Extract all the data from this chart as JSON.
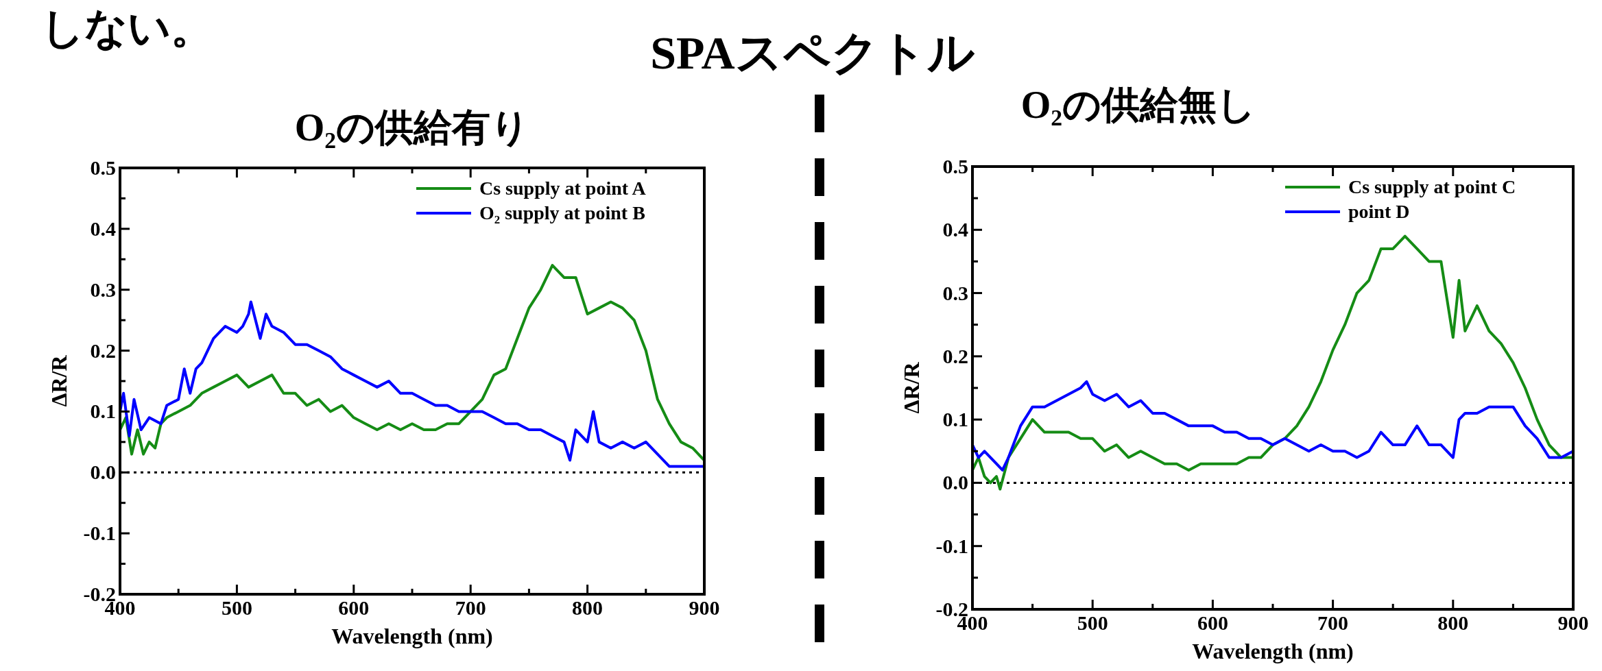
{
  "chart_data": [
    {
      "type": "other",
      "title": "SPAスペクトル",
      "annotations": [
        "しない。"
      ]
    },
    {
      "type": "line",
      "title": "O₂の供給有り",
      "xlabel": "Wavelength (nm)",
      "ylabel": "ΔR/R",
      "xlim": [
        400,
        900
      ],
      "ylim": [
        -0.2,
        0.5
      ],
      "xticks": [
        400,
        {
          "value": 450,
          "label": null
        },
        500,
        {
          "value": 550,
          "label": null
        },
        600,
        {
          "value": 650,
          "label": null
        },
        700,
        {
          "value": 750,
          "label": null
        },
        800,
        {
          "value": 850,
          "label": null
        },
        900
      ],
      "yticks": [
        -0.2,
        {
          "value": -0.15,
          "label": null
        },
        -0.1,
        {
          "value": -0.05,
          "label": null
        },
        {
          "value": 0,
          "label": "0.0"
        },
        {
          "value": 0.05,
          "label": null
        },
        0.1,
        {
          "value": 0.15,
          "label": null
        },
        0.2,
        {
          "value": 0.25,
          "label": null
        },
        0.3,
        {
          "value": 0.35,
          "label": null
        },
        0.4,
        {
          "value": 0.45,
          "label": null
        },
        0.5
      ],
      "legend": "top right",
      "grid": false,
      "ref_lines": [
        {
          "axis": "y",
          "value": 0,
          "line_style": "dotted",
          "color": "#000000"
        }
      ],
      "series": [
        {
          "name": "Cs supply at point A",
          "color": "#158c15",
          "x": [
            400,
            405,
            410,
            415,
            420,
            425,
            430,
            435,
            440,
            450,
            460,
            470,
            480,
            490,
            500,
            510,
            520,
            530,
            540,
            550,
            560,
            570,
            580,
            590,
            600,
            610,
            620,
            630,
            640,
            650,
            660,
            670,
            680,
            690,
            700,
            710,
            720,
            730,
            740,
            750,
            760,
            770,
            780,
            790,
            800,
            810,
            820,
            830,
            840,
            850,
            860,
            870,
            880,
            890,
            900
          ],
          "values": [
            0.07,
            0.09,
            0.03,
            0.07,
            0.03,
            0.05,
            0.04,
            0.08,
            0.09,
            0.1,
            0.11,
            0.13,
            0.14,
            0.15,
            0.16,
            0.14,
            0.15,
            0.16,
            0.13,
            0.13,
            0.11,
            0.12,
            0.1,
            0.11,
            0.09,
            0.08,
            0.07,
            0.08,
            0.07,
            0.08,
            0.07,
            0.07,
            0.08,
            0.08,
            0.1,
            0.12,
            0.16,
            0.17,
            0.22,
            0.27,
            0.3,
            0.34,
            0.32,
            0.32,
            0.26,
            0.27,
            0.28,
            0.27,
            0.25,
            0.2,
            0.12,
            0.08,
            0.05,
            0.04,
            0.02
          ]
        },
        {
          "name": "O₂ supply at point B",
          "color": "#0000ff",
          "x": [
            400,
            403,
            408,
            412,
            418,
            425,
            435,
            440,
            450,
            455,
            460,
            465,
            470,
            475,
            480,
            490,
            500,
            505,
            510,
            512,
            520,
            525,
            530,
            540,
            550,
            560,
            570,
            580,
            590,
            600,
            610,
            620,
            630,
            640,
            650,
            660,
            670,
            680,
            690,
            700,
            710,
            720,
            730,
            740,
            750,
            760,
            770,
            780,
            785,
            790,
            800,
            805,
            810,
            820,
            830,
            840,
            850,
            860,
            870,
            880,
            890,
            900
          ],
          "values": [
            0.1,
            0.13,
            0.06,
            0.12,
            0.07,
            0.09,
            0.08,
            0.11,
            0.12,
            0.17,
            0.13,
            0.17,
            0.18,
            0.2,
            0.22,
            0.24,
            0.23,
            0.24,
            0.26,
            0.28,
            0.22,
            0.26,
            0.24,
            0.23,
            0.21,
            0.21,
            0.2,
            0.19,
            0.17,
            0.16,
            0.15,
            0.14,
            0.15,
            0.13,
            0.13,
            0.12,
            0.11,
            0.11,
            0.1,
            0.1,
            0.1,
            0.09,
            0.08,
            0.08,
            0.07,
            0.07,
            0.06,
            0.05,
            0.02,
            0.07,
            0.05,
            0.1,
            0.05,
            0.04,
            0.05,
            0.04,
            0.05,
            0.03,
            0.01,
            0.01,
            0.01,
            0.01
          ]
        }
      ]
    },
    {
      "type": "line",
      "title": "O₂の供給無し",
      "xlabel": "Wavelength (nm)",
      "ylabel": "ΔR/R",
      "xlim": [
        400,
        900
      ],
      "ylim": [
        -0.2,
        0.5
      ],
      "xticks": [
        400,
        {
          "value": 450,
          "label": null
        },
        500,
        {
          "value": 550,
          "label": null
        },
        600,
        {
          "value": 650,
          "label": null
        },
        700,
        {
          "value": 750,
          "label": null
        },
        800,
        {
          "value": 850,
          "label": null
        },
        900
      ],
      "yticks": [
        -0.2,
        {
          "value": -0.15,
          "label": null
        },
        -0.1,
        {
          "value": -0.05,
          "label": null
        },
        {
          "value": 0,
          "label": "0.0"
        },
        {
          "value": 0.05,
          "label": null
        },
        0.1,
        {
          "value": 0.15,
          "label": null
        },
        0.2,
        {
          "value": 0.25,
          "label": null
        },
        0.3,
        {
          "value": 0.35,
          "label": null
        },
        0.4,
        {
          "value": 0.45,
          "label": null
        },
        0.5
      ],
      "legend": "top right",
      "grid": false,
      "ref_lines": [
        {
          "axis": "y",
          "value": 0,
          "line_style": "dotted",
          "color": "#000000"
        }
      ],
      "series": [
        {
          "name": "Cs supply at point C",
          "color": "#158c15",
          "x": [
            400,
            405,
            410,
            415,
            420,
            423,
            430,
            440,
            450,
            460,
            470,
            480,
            490,
            500,
            510,
            520,
            530,
            540,
            550,
            560,
            570,
            580,
            590,
            600,
            610,
            620,
            630,
            640,
            650,
            660,
            670,
            680,
            690,
            700,
            710,
            720,
            730,
            740,
            750,
            760,
            770,
            780,
            790,
            800,
            805,
            810,
            820,
            830,
            840,
            850,
            860,
            870,
            880,
            890,
            900
          ],
          "values": [
            0.02,
            0.04,
            0.01,
            0.0,
            0.01,
            -0.01,
            0.04,
            0.07,
            0.1,
            0.08,
            0.08,
            0.08,
            0.07,
            0.07,
            0.05,
            0.06,
            0.04,
            0.05,
            0.04,
            0.03,
            0.03,
            0.02,
            0.03,
            0.03,
            0.03,
            0.03,
            0.04,
            0.04,
            0.06,
            0.07,
            0.09,
            0.12,
            0.16,
            0.21,
            0.25,
            0.3,
            0.32,
            0.37,
            0.37,
            0.39,
            0.37,
            0.35,
            0.35,
            0.23,
            0.32,
            0.24,
            0.28,
            0.24,
            0.22,
            0.19,
            0.15,
            0.1,
            0.06,
            0.04,
            0.04
          ]
        },
        {
          "name": "point D",
          "color": "#0000ff",
          "x": [
            400,
            405,
            410,
            420,
            425,
            430,
            440,
            450,
            460,
            470,
            480,
            490,
            495,
            500,
            510,
            520,
            530,
            540,
            550,
            560,
            570,
            580,
            590,
            600,
            610,
            620,
            630,
            640,
            650,
            660,
            670,
            680,
            690,
            700,
            710,
            720,
            730,
            740,
            750,
            760,
            770,
            780,
            790,
            800,
            805,
            810,
            820,
            830,
            840,
            850,
            860,
            870,
            880,
            890,
            900
          ],
          "values": [
            0.06,
            0.04,
            0.05,
            0.03,
            0.02,
            0.04,
            0.09,
            0.12,
            0.12,
            0.13,
            0.14,
            0.15,
            0.16,
            0.14,
            0.13,
            0.14,
            0.12,
            0.13,
            0.11,
            0.11,
            0.1,
            0.09,
            0.09,
            0.09,
            0.08,
            0.08,
            0.07,
            0.07,
            0.06,
            0.07,
            0.06,
            0.05,
            0.06,
            0.05,
            0.05,
            0.04,
            0.05,
            0.08,
            0.06,
            0.06,
            0.09,
            0.06,
            0.06,
            0.04,
            0.1,
            0.11,
            0.11,
            0.12,
            0.12,
            0.12,
            0.09,
            0.07,
            0.04,
            0.04,
            0.05
          ]
        }
      ]
    }
  ]
}
